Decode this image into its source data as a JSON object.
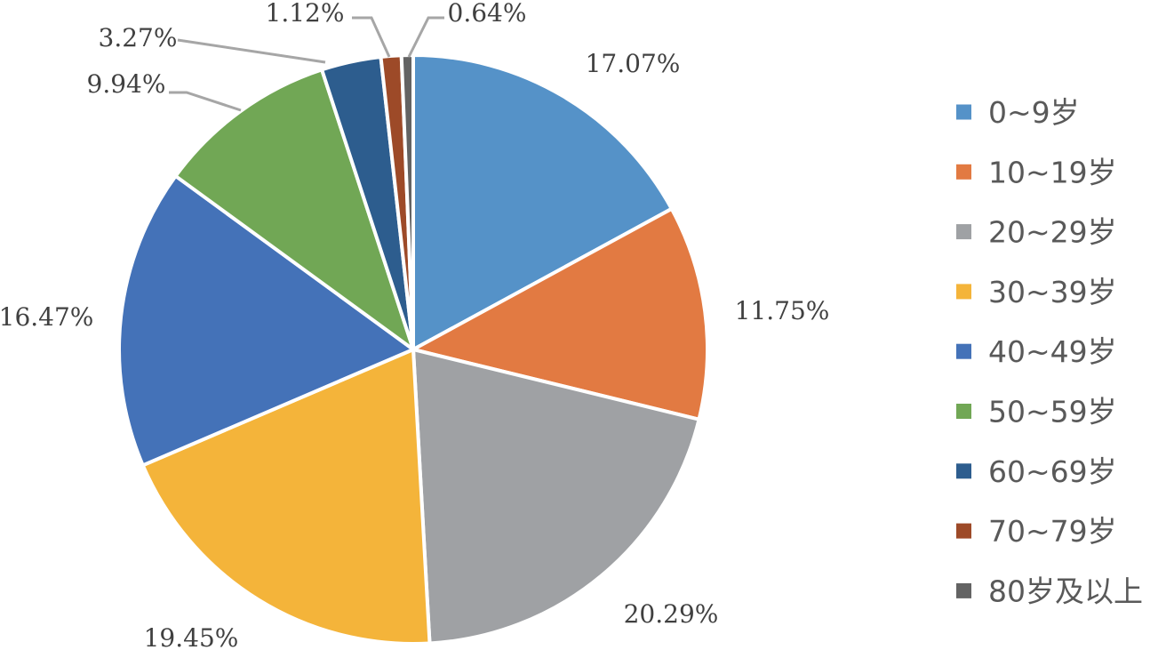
{
  "chart_data": {
    "type": "pie",
    "title": "",
    "start_angle_deg": 0,
    "direction": "clockwise",
    "legend_position": "right",
    "slices": [
      {
        "label": "0~9岁",
        "value": 17.07,
        "display": "17.07%",
        "color": "#5592C8"
      },
      {
        "label": "10~19岁",
        "value": 11.75,
        "display": "11.75%",
        "color": "#E27A42"
      },
      {
        "label": "20~29岁",
        "value": 20.29,
        "display": "20.29%",
        "color": "#9FA1A4"
      },
      {
        "label": "30~39岁",
        "value": 19.45,
        "display": "19.45%",
        "color": "#F4B43A"
      },
      {
        "label": "40~49岁",
        "value": 16.47,
        "display": "16.47%",
        "color": "#4472B8"
      },
      {
        "label": "50~59岁",
        "value": 9.94,
        "display": "9.94%",
        "color": "#71A755"
      },
      {
        "label": "60~69岁",
        "value": 3.27,
        "display": "3.27%",
        "color": "#2D5D8E"
      },
      {
        "label": "70~79岁",
        "value": 1.12,
        "display": "1.12%",
        "color": "#9D4A28"
      },
      {
        "label": "80岁及以上",
        "value": 0.64,
        "display": "0.64%",
        "color": "#636363"
      }
    ]
  }
}
